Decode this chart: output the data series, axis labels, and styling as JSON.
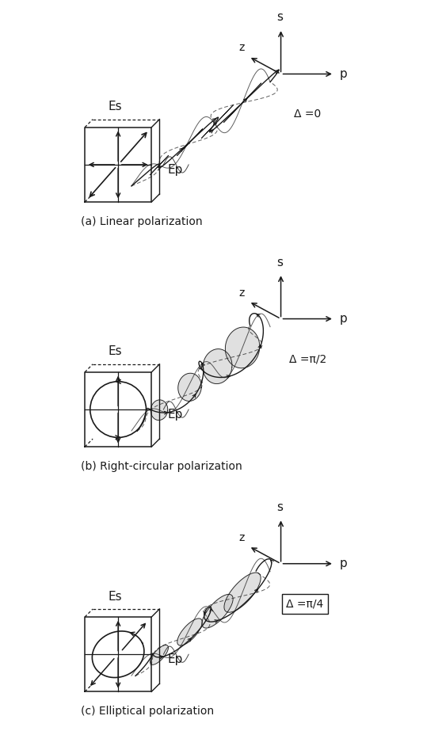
{
  "bg_color": "#ffffff",
  "line_color": "#1a1a1a",
  "fill_color": "#c8c8c8",
  "title_a": "(a) Linear polarization",
  "title_b": "(b) Right-circular polarization",
  "title_c": "(c) Elliptical polarization",
  "delta_a": "Δ =0",
  "delta_b": "Δ =π/2",
  "delta_c": "Δ =π/4",
  "label_s": "s",
  "label_p": "p",
  "label_z": "z",
  "label_Es": "Es",
  "label_Ep": "Ep",
  "fig_width": 5.34,
  "fig_height": 9.23
}
